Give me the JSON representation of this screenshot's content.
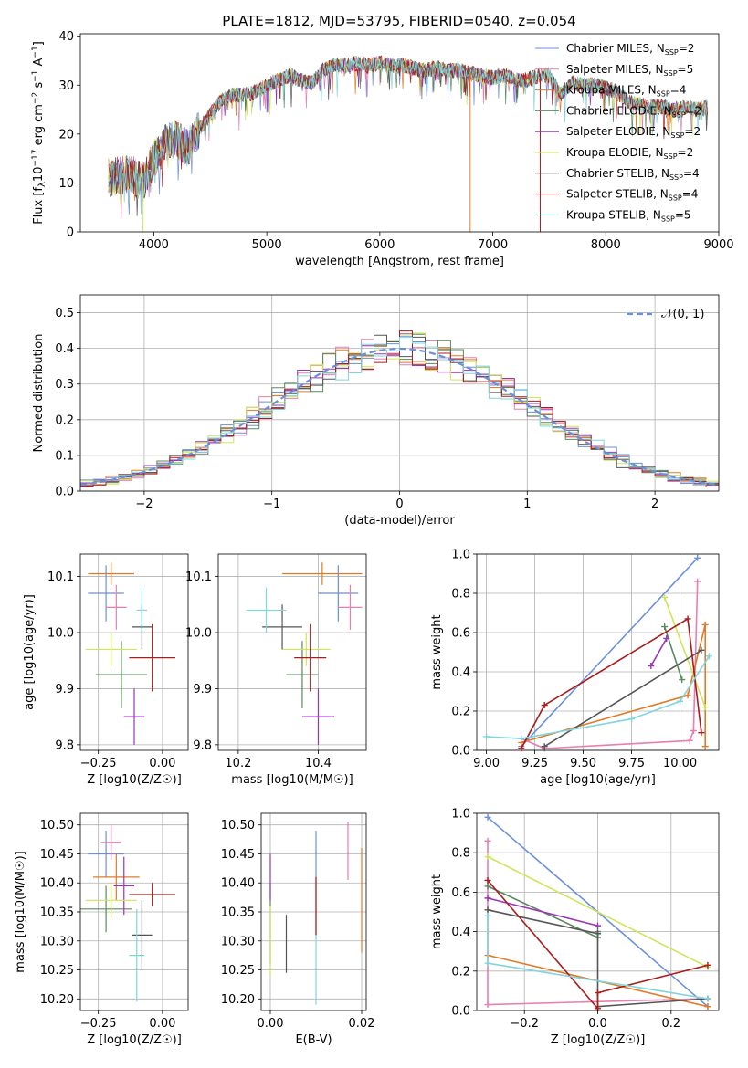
{
  "colors": [
    "#6a8fdc",
    "#e77fb3",
    "#e07b28",
    "#5a8a5e",
    "#9a34b8",
    "#cde65a",
    "#555555",
    "#aa1c1c",
    "#7fd6de"
  ],
  "ssp_labels": [
    "Chabrier MILES, N",
    "Salpeter MILES, N",
    "Kroupa MILES, N",
    "Chabrier ELODIE, N",
    "Salpeter ELODIE, N",
    "Kroupa ELODIE, N",
    "Chabrier STELIB, N",
    "Salpeter STELIB, N",
    "Kroupa STELIB, N"
  ],
  "chart_data": [
    {
      "type": "line",
      "title": "PLATE=1812, MJD=53795, FIBERID=0540, z=0.054",
      "xlabel": "wavelength [Angstrom, rest frame]",
      "ylabel": "Flux [f",
      "xlim": [
        3350,
        9000
      ],
      "ylim": [
        0,
        40.5
      ],
      "xticks": [
        4000,
        5000,
        6000,
        7000,
        8000,
        9000
      ],
      "yticks": [
        0,
        10,
        20,
        30,
        40
      ],
      "nssp": [
        2,
        5,
        4,
        2,
        2,
        2,
        4,
        4,
        5
      ],
      "continuum": [
        [
          3600,
          11
        ],
        [
          3700,
          11.5
        ],
        [
          3800,
          12
        ],
        [
          3900,
          10
        ],
        [
          4000,
          15
        ],
        [
          4100,
          18
        ],
        [
          4200,
          19
        ],
        [
          4300,
          17
        ],
        [
          4400,
          21
        ],
        [
          4500,
          24
        ],
        [
          4600,
          27
        ],
        [
          4700,
          28
        ],
        [
          4800,
          28
        ],
        [
          4900,
          28.5
        ],
        [
          5000,
          30
        ],
        [
          5100,
          31
        ],
        [
          5200,
          32
        ],
        [
          5300,
          31
        ],
        [
          5400,
          30.5
        ],
        [
          5500,
          33
        ],
        [
          5600,
          34
        ],
        [
          5700,
          34
        ],
        [
          5800,
          34.5
        ],
        [
          5900,
          34
        ],
        [
          6000,
          34.5
        ],
        [
          6100,
          34
        ],
        [
          6200,
          34
        ],
        [
          6300,
          33.5
        ],
        [
          6400,
          33
        ],
        [
          6500,
          33.5
        ],
        [
          6600,
          33
        ],
        [
          6700,
          33
        ],
        [
          6800,
          32.5
        ],
        [
          6900,
          32
        ],
        [
          7000,
          31.5
        ],
        [
          7100,
          32
        ],
        [
          7200,
          31
        ],
        [
          7300,
          31
        ],
        [
          7400,
          32
        ],
        [
          7500,
          32
        ],
        [
          7600,
          28
        ],
        [
          7700,
          30.5
        ],
        [
          7800,
          30
        ],
        [
          7900,
          30
        ],
        [
          8000,
          29.5
        ],
        [
          8100,
          28.5
        ],
        [
          8200,
          26.5
        ],
        [
          8300,
          26
        ],
        [
          8400,
          25.5
        ],
        [
          8500,
          25.5
        ],
        [
          8600,
          25
        ],
        [
          8700,
          25.5
        ],
        [
          8800,
          25
        ],
        [
          8900,
          25.5
        ]
      ]
    },
    {
      "type": "bar",
      "xlabel": "(data-model)/error",
      "ylabel": "Normed distribution",
      "xlim": [
        -2.5,
        2.5
      ],
      "ylim": [
        0,
        0.55
      ],
      "xticks": [
        -2,
        -1,
        0,
        1,
        2
      ],
      "yticks": [
        0.0,
        0.1,
        0.2,
        0.3,
        0.4,
        0.5
      ],
      "legend": "N(0,1)",
      "legend_location": "top-right"
    },
    {
      "type": "scatter",
      "xlabel": "Z [log10(Z/Z☉)]",
      "ylabel": "age [log10(age/yr)]",
      "xlim": [
        -0.32,
        0.1
      ],
      "ylim": [
        9.79,
        10.14
      ],
      "xticks": [
        -0.25,
        0.0
      ],
      "yticks": [
        9.8,
        9.9,
        10.0,
        10.1
      ],
      "points": [
        [
          -0.22,
          10.07,
          0.07,
          0.05
        ],
        [
          -0.18,
          10.045,
          0.04,
          0.04
        ],
        [
          -0.2,
          10.105,
          0.09,
          0.02
        ],
        [
          -0.16,
          9.925,
          0.1,
          0.06
        ],
        [
          -0.11,
          9.85,
          0.04,
          0.05
        ],
        [
          -0.2,
          9.97,
          0.1,
          0.03
        ],
        [
          -0.08,
          10.01,
          0.04,
          0.04
        ],
        [
          -0.04,
          9.955,
          0.09,
          0.06
        ],
        [
          -0.08,
          10.04,
          0.02,
          0.04
        ]
      ]
    },
    {
      "type": "scatter",
      "xlabel": "mass [log10(M/M☉)]",
      "ylabel": "",
      "xlim": [
        10.15,
        10.52
      ],
      "ylim": [
        9.79,
        10.14
      ],
      "xticks": [
        10.2,
        10.4
      ],
      "yticks": [
        9.8,
        9.9,
        10.0,
        10.1
      ],
      "points": [
        [
          10.45,
          10.07,
          0.05,
          0.05
        ],
        [
          10.48,
          10.045,
          0.03,
          0.04
        ],
        [
          10.41,
          10.105,
          0.1,
          0.02
        ],
        [
          10.36,
          9.925,
          0.04,
          0.06
        ],
        [
          10.4,
          9.85,
          0.04,
          0.05
        ],
        [
          10.37,
          9.97,
          0.06,
          0.03
        ],
        [
          10.31,
          10.01,
          0.05,
          0.04
        ],
        [
          10.38,
          9.955,
          0.04,
          0.06
        ],
        [
          10.27,
          10.04,
          0.05,
          0.04
        ]
      ]
    },
    {
      "type": "line",
      "xlabel": "age [log10(age/yr)]",
      "ylabel": "mass weight",
      "xlim": [
        8.95,
        10.2
      ],
      "ylim": [
        0,
        1
      ],
      "xticks": [
        9.0,
        9.25,
        9.5,
        9.75,
        10.0
      ],
      "yticks": [
        0.0,
        0.2,
        0.4,
        0.6,
        0.8,
        1.0
      ],
      "series": [
        {
          "x": [
            9.18,
            10.09
          ],
          "y": [
            0.02,
            0.98
          ]
        },
        {
          "x": [
            9.18,
            9.3,
            10.05,
            10.07,
            10.09
          ],
          "y": [
            0.06,
            0.01,
            0.05,
            0.1,
            0.86
          ]
        },
        {
          "x": [
            9.18,
            10.04,
            10.13,
            10.13
          ],
          "y": [
            0.04,
            0.28,
            0.64,
            0.02
          ]
        },
        {
          "x": [
            9.92,
            10.01
          ],
          "y": [
            0.63,
            0.36
          ]
        },
        {
          "x": [
            9.85,
            9.93
          ],
          "y": [
            0.43,
            0.57
          ]
        },
        {
          "x": [
            9.92,
            10.13
          ],
          "y": [
            0.78,
            0.22
          ]
        },
        {
          "x": [
            9.3,
            10.11
          ],
          "y": [
            0.02,
            0.51
          ]
        },
        {
          "x": [
            9.18,
            9.3,
            10.04,
            10.11
          ],
          "y": [
            0.01,
            0.23,
            0.67,
            0.09
          ]
        },
        {
          "x": [
            9.0,
            9.18,
            9.75,
            10.0,
            10.15
          ],
          "y": [
            0.07,
            0.06,
            0.16,
            0.25,
            0.48
          ]
        }
      ]
    },
    {
      "type": "scatter",
      "xlabel": "Z [log10(Z/Z☉)]",
      "ylabel": "mass [log10(M/M☉)]",
      "xlim": [
        -0.32,
        0.1
      ],
      "ylim": [
        10.18,
        10.52
      ],
      "xticks": [
        -0.25,
        0.0
      ],
      "yticks": [
        10.2,
        10.25,
        10.3,
        10.35,
        10.4,
        10.45,
        10.5
      ],
      "points": [
        [
          -0.22,
          10.45,
          0.07,
          0.04
        ],
        [
          -0.2,
          10.47,
          0.04,
          0.03
        ],
        [
          -0.18,
          10.41,
          0.09,
          0.04
        ],
        [
          -0.22,
          10.355,
          0.1,
          0.04
        ],
        [
          -0.15,
          10.395,
          0.04,
          0.05
        ],
        [
          -0.2,
          10.37,
          0.1,
          0.03
        ],
        [
          -0.08,
          10.31,
          0.04,
          0.06
        ],
        [
          -0.04,
          10.38,
          0.09,
          0.02
        ],
        [
          -0.1,
          10.275,
          0.03,
          0.08
        ]
      ]
    },
    {
      "type": "scatter",
      "xlabel": "E(B-V)",
      "ylabel": "",
      "xlim": [
        -0.002,
        0.021
      ],
      "ylim": [
        10.18,
        10.52
      ],
      "xticks": [
        0.0,
        0.02
      ],
      "yticks": [
        10.2,
        10.25,
        10.3,
        10.35,
        10.4,
        10.45,
        10.5
      ],
      "points": [
        [
          0.01,
          10.4,
          0.0,
          0.09
        ],
        [
          0.017,
          10.455,
          0.0,
          0.05
        ],
        [
          0.02,
          10.37,
          0.0,
          0.09
        ],
        [
          0.0,
          10.33,
          0.0,
          0.07
        ],
        [
          0.0,
          10.41,
          0.0,
          0.04
        ],
        [
          0.0,
          10.3,
          0.0,
          0.06
        ],
        [
          0.0035,
          10.295,
          0.0,
          0.05
        ],
        [
          0.01,
          10.36,
          0.0,
          0.05
        ],
        [
          0.01,
          10.25,
          0.0,
          0.06
        ]
      ]
    },
    {
      "type": "line",
      "xlabel": "Z [log10(Z/Z☉)]",
      "ylabel": "mass weight",
      "xlim": [
        -0.33,
        0.33
      ],
      "ylim": [
        0,
        1
      ],
      "xticks": [
        -0.2,
        0.0,
        0.2
      ],
      "yticks": [
        0.0,
        0.2,
        0.4,
        0.6,
        0.8,
        1.0
      ],
      "series": [
        {
          "x": [
            -0.3,
            0.3
          ],
          "y": [
            0.98,
            0.02
          ]
        },
        {
          "x": [
            -0.3,
            -0.3,
            0.3
          ],
          "y": [
            0.86,
            0.03,
            0.06
          ]
        },
        {
          "x": [
            -0.3,
            0.3
          ],
          "y": [
            0.28,
            0.02
          ]
        },
        {
          "x": [
            -0.3,
            0.0,
            0.0
          ],
          "y": [
            0.63,
            0.37,
            0.4
          ]
        },
        {
          "x": [
            -0.3,
            0.0
          ],
          "y": [
            0.57,
            0.43
          ]
        },
        {
          "x": [
            -0.3,
            0.3
          ],
          "y": [
            0.78,
            0.22
          ]
        },
        {
          "x": [
            -0.3,
            0.0,
            0.0,
            0.3
          ],
          "y": [
            0.51,
            0.39,
            0.02,
            0.06
          ]
        },
        {
          "x": [
            -0.3,
            0.0,
            0.0,
            0.3
          ],
          "y": [
            0.66,
            0.01,
            0.09,
            0.23
          ]
        },
        {
          "x": [
            -0.3,
            -0.3,
            0.3
          ],
          "y": [
            0.48,
            0.24,
            0.06
          ]
        }
      ]
    }
  ]
}
